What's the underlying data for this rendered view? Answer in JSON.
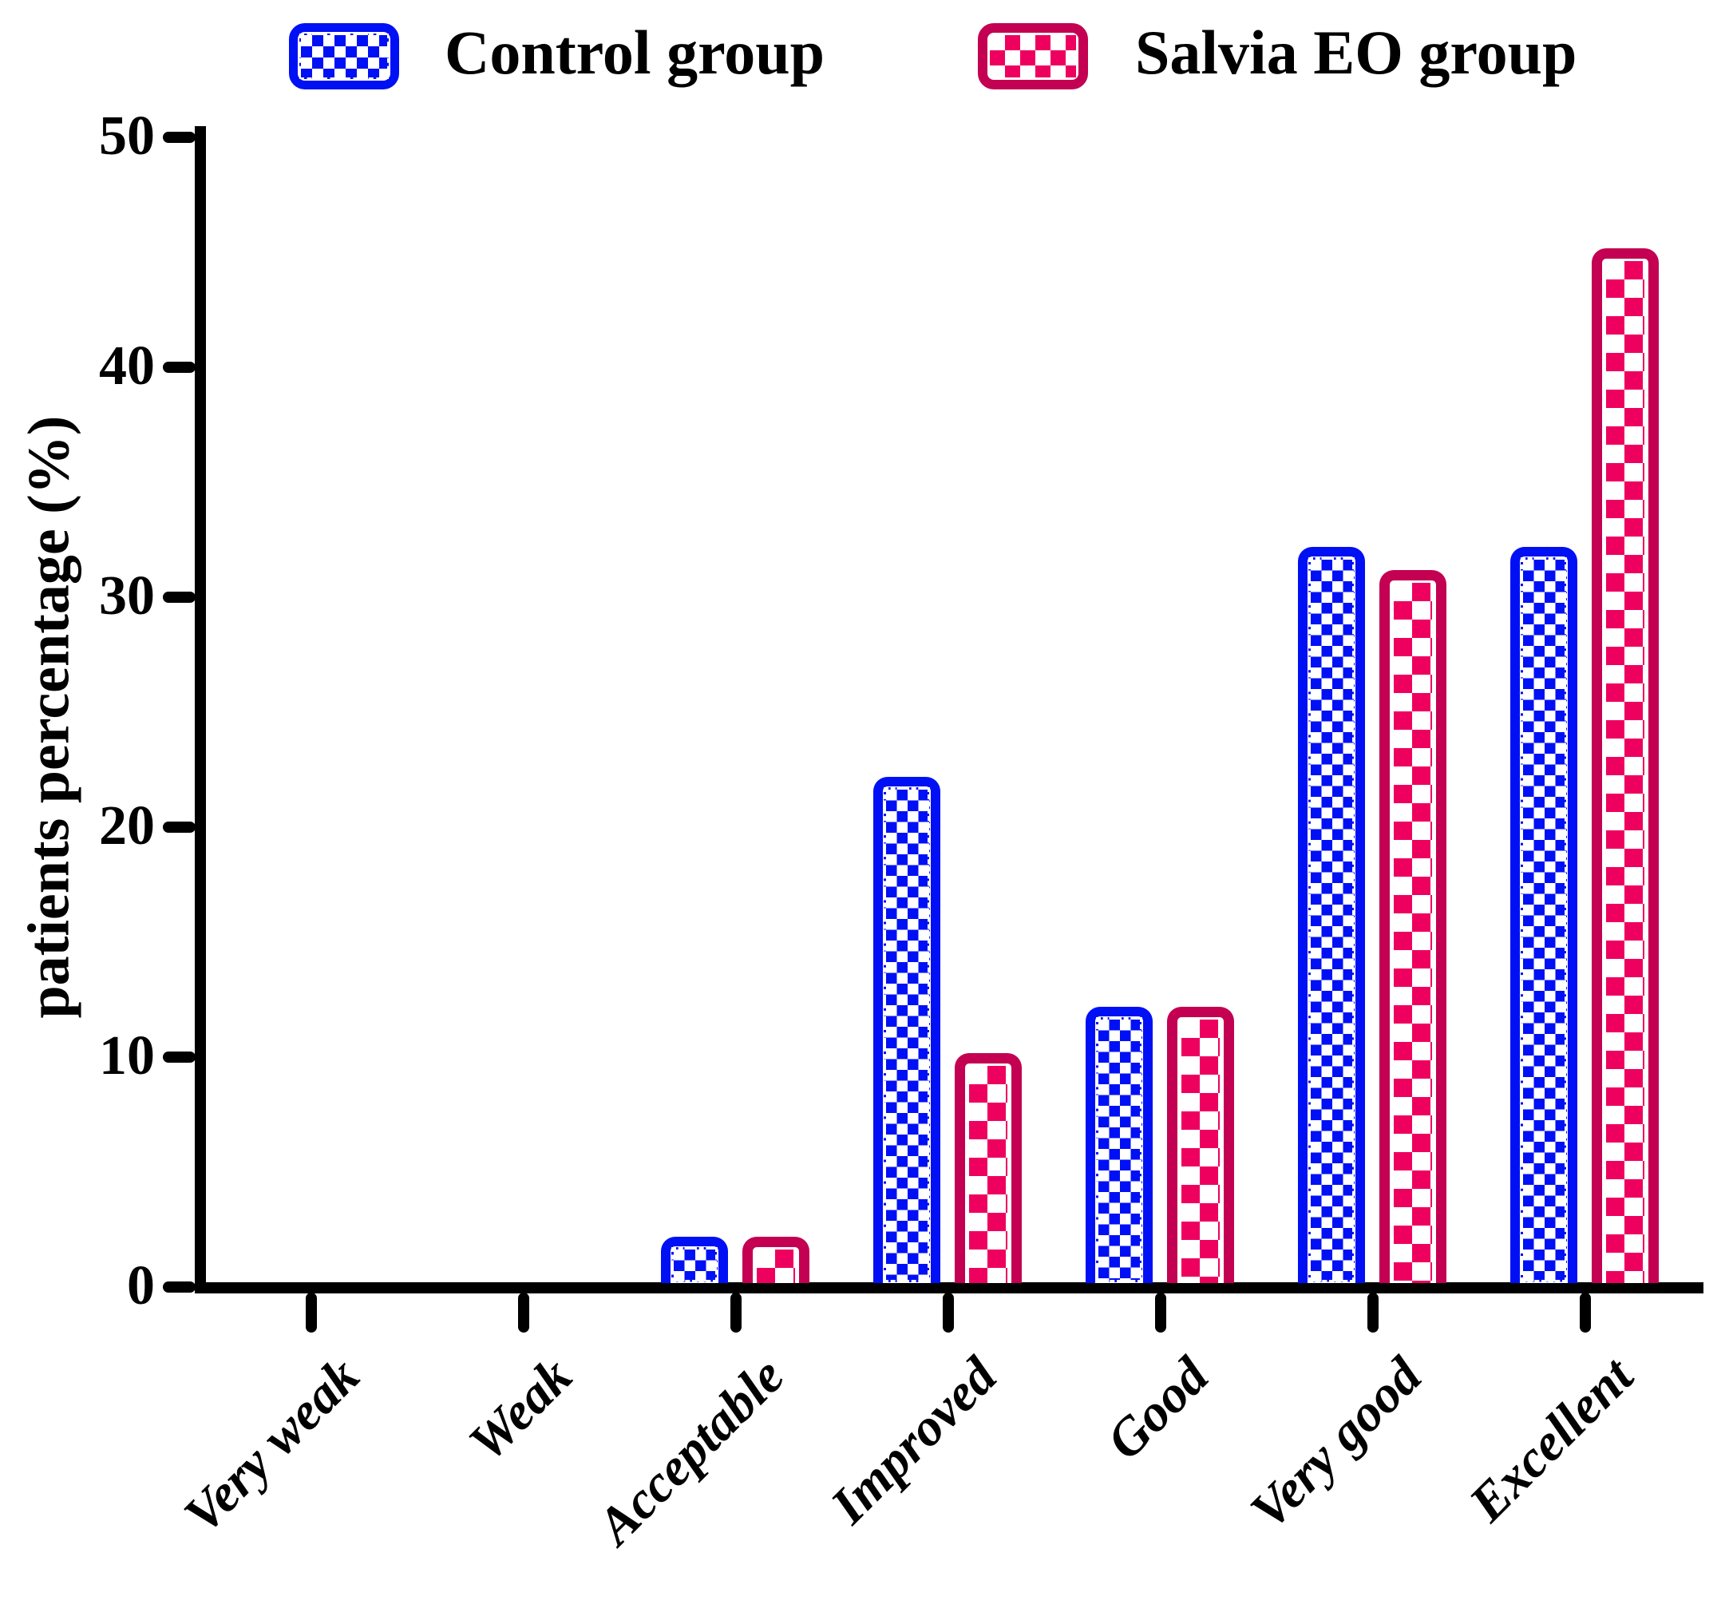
{
  "chart_data": {
    "type": "bar",
    "title": "",
    "xlabel": "",
    "ylabel": "patients percentage (%)",
    "ylim": [
      0,
      50
    ],
    "yticks": [
      0,
      10,
      20,
      30,
      40,
      50
    ],
    "grid": false,
    "legend_position": "top",
    "categories": [
      "Very weak",
      "Weak",
      "Acceptable",
      "Improved",
      "Good",
      "Very good",
      "Excellent"
    ],
    "series": [
      {
        "name": "Control group",
        "values": [
          0,
          0,
          2,
          22,
          12,
          32,
          32
        ],
        "fill_color": "#0010F5",
        "border_color": "#0010F5",
        "pattern": "checkerboard"
      },
      {
        "name": "Salvia EO group",
        "values": [
          0,
          0,
          2,
          10,
          12,
          31,
          45
        ],
        "fill_color": "#EE005F",
        "border_color": "#C30051",
        "pattern": "checkerboard"
      }
    ]
  }
}
